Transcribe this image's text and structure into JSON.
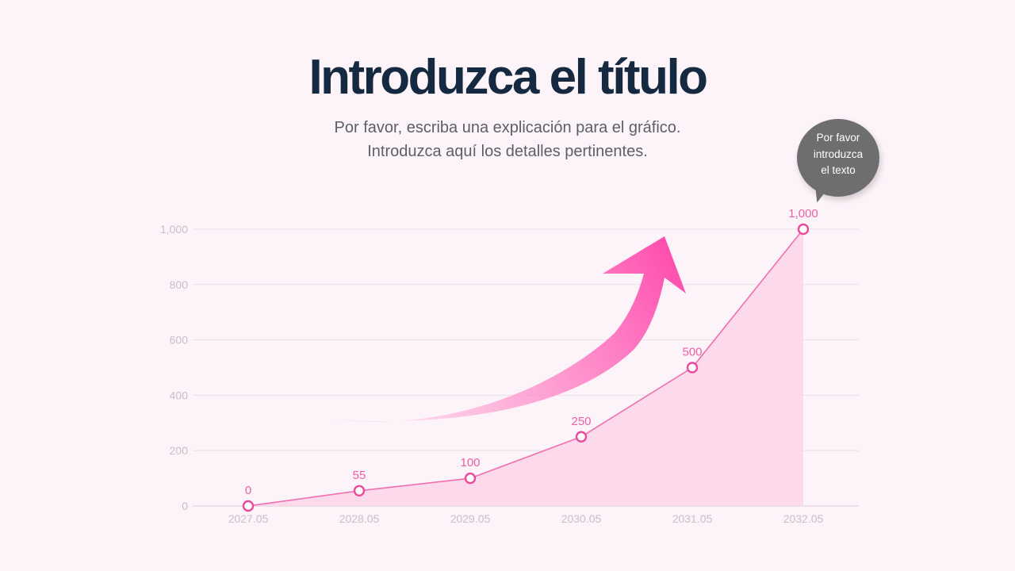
{
  "header": {
    "title": "Introduzca el título",
    "subtitle_lines": [
      "Por favor, escriba una explicación para el gráfico.",
      "Introduzca aquí los detalles pertinentes."
    ]
  },
  "callout": {
    "lines": [
      "Por favor",
      "introduzca",
      "el texto"
    ]
  },
  "chart_data": {
    "type": "area",
    "categories": [
      "2027.05",
      "2028.05",
      "2029.05",
      "2030.05",
      "2031.05",
      "2032.05"
    ],
    "values": [
      0,
      55,
      100,
      250,
      500,
      1000
    ],
    "data_labels": [
      "0",
      "55",
      "100",
      "250",
      "500",
      "1,000"
    ],
    "y_ticks": [
      "0",
      "200",
      "400",
      "600",
      "800",
      "1,000"
    ],
    "ylim": [
      0,
      1000
    ],
    "grid": true,
    "colors": {
      "line": "#ef6fb0",
      "fill": "#fcd3e8",
      "marker_stroke": "#e94a9c",
      "arrow": "#ff4fae"
    }
  }
}
